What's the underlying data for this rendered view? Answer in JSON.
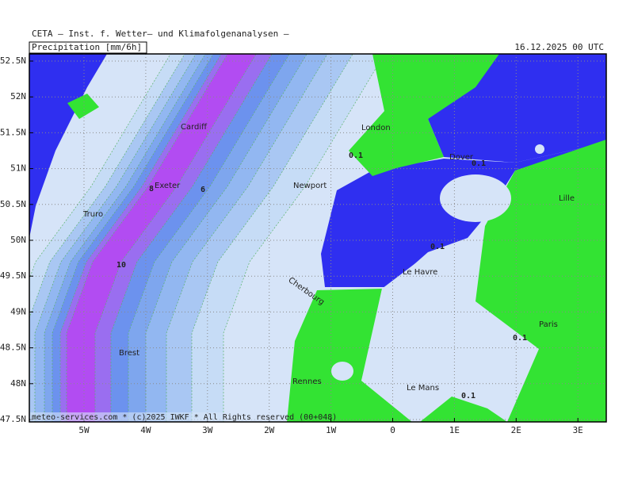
{
  "header": {
    "title": "CETA – Inst. f. Wetter– und Klimafolgenanalysen –",
    "field": "Precipitation [mm/6h]",
    "valid": "16.12.2025 00 UTC"
  },
  "axes": {
    "lat": [
      "52.5N",
      "52N",
      "51.5N",
      "51N",
      "50.5N",
      "50N",
      "49.5N",
      "49N",
      "48.5N",
      "48N",
      "47.5N"
    ],
    "lon": [
      "5W",
      "4W",
      "3W",
      "2W",
      "1W",
      "0",
      "1E",
      "2E",
      "3E"
    ]
  },
  "places": [
    "Cardiff",
    "London",
    "Exeter",
    "Truro",
    "Newport",
    "Dover",
    "Lille",
    "Le Havre",
    "Cherbourg",
    "Paris",
    "Brest",
    "Rennes",
    "Le Mans"
  ],
  "contour_labels": [
    0.1,
    8,
    6,
    10,
    0.1,
    0.1,
    0.1,
    0.1
  ],
  "footer": "meteo-services.com * (c)2025 IWKF * All Rights reserved (00+048)"
}
